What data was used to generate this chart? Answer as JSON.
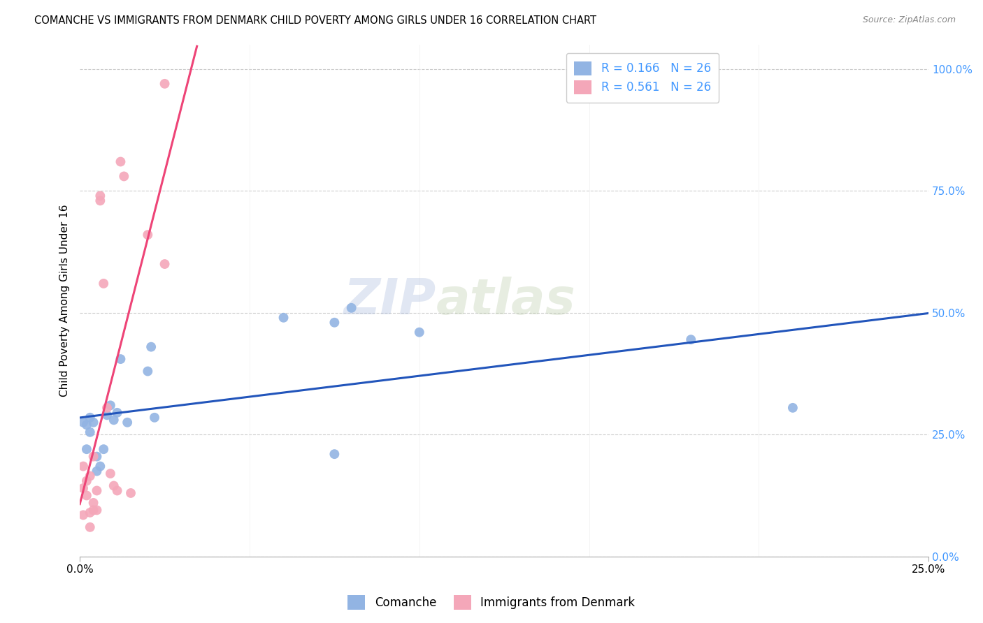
{
  "title": "COMANCHE VS IMMIGRANTS FROM DENMARK CHILD POVERTY AMONG GIRLS UNDER 16 CORRELATION CHART",
  "source": "Source: ZipAtlas.com",
  "ylabel": "Child Poverty Among Girls Under 16",
  "xlim": [
    0.0,
    0.25
  ],
  "ylim": [
    0.0,
    1.05
  ],
  "comanche_R": "0.166",
  "comanche_N": "26",
  "denmark_R": "0.561",
  "denmark_N": "26",
  "comanche_color": "#92B4E3",
  "denmark_color": "#F4A7B9",
  "comanche_line_color": "#2255BB",
  "denmark_line_color": "#EE4477",
  "legend_comanche_label": "Comanche",
  "legend_denmark_label": "Immigrants from Denmark",
  "watermark_zip": "ZIP",
  "watermark_atlas": "atlas",
  "comanche_x": [
    0.001,
    0.002,
    0.002,
    0.003,
    0.003,
    0.004,
    0.005,
    0.005,
    0.006,
    0.007,
    0.008,
    0.009,
    0.01,
    0.011,
    0.012,
    0.014,
    0.02,
    0.021,
    0.022,
    0.06,
    0.075,
    0.075,
    0.08,
    0.1,
    0.18,
    0.21
  ],
  "comanche_y": [
    0.275,
    0.22,
    0.27,
    0.255,
    0.285,
    0.275,
    0.175,
    0.205,
    0.185,
    0.22,
    0.29,
    0.31,
    0.28,
    0.295,
    0.405,
    0.275,
    0.38,
    0.43,
    0.285,
    0.49,
    0.48,
    0.21,
    0.51,
    0.46,
    0.445,
    0.305
  ],
  "denmark_x": [
    0.001,
    0.001,
    0.001,
    0.002,
    0.002,
    0.003,
    0.003,
    0.003,
    0.004,
    0.004,
    0.004,
    0.005,
    0.005,
    0.006,
    0.006,
    0.007,
    0.008,
    0.009,
    0.01,
    0.011,
    0.012,
    0.013,
    0.015,
    0.02,
    0.025,
    0.025
  ],
  "denmark_y": [
    0.185,
    0.14,
    0.085,
    0.155,
    0.125,
    0.09,
    0.06,
    0.165,
    0.11,
    0.095,
    0.205,
    0.135,
    0.095,
    0.73,
    0.74,
    0.56,
    0.305,
    0.17,
    0.145,
    0.135,
    0.81,
    0.78,
    0.13,
    0.66,
    0.6,
    0.97
  ],
  "xtick_positions": [
    0.0,
    0.25
  ],
  "xtick_labels": [
    "0.0%",
    "25.0%"
  ],
  "ytick_positions": [
    0.0,
    0.25,
    0.5,
    0.75,
    1.0
  ],
  "ytick_labels": [
    "0.0%",
    "25.0%",
    "50.0%",
    "75.0%",
    "100.0%"
  ]
}
